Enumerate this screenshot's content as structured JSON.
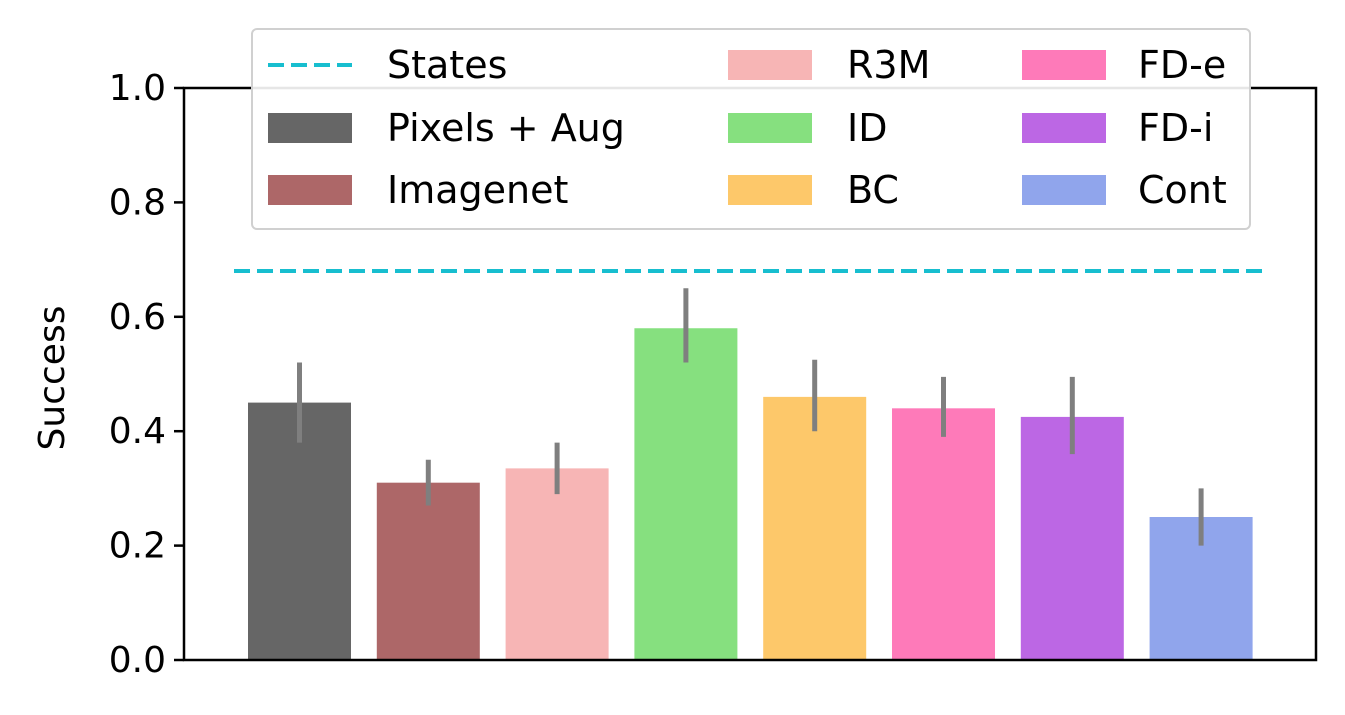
{
  "chart_data": {
    "type": "bar",
    "title": "",
    "xlabel": "",
    "ylabel": "Success",
    "ylim": [
      0.0,
      1.0
    ],
    "yticks": [
      "0.0",
      "0.2",
      "0.4",
      "0.6",
      "0.8",
      "1.0"
    ],
    "grid": false,
    "legend_position": "top",
    "reference_line": {
      "name": "States",
      "value": 0.68,
      "color": "#17becf",
      "style": "dashed"
    },
    "series": [
      {
        "name": "Pixels + Aug",
        "value": 0.45,
        "err_low": 0.38,
        "err_high": 0.52,
        "color": "#666666"
      },
      {
        "name": "Imagenet",
        "value": 0.31,
        "err_low": 0.27,
        "err_high": 0.35,
        "color": "#ad6768"
      },
      {
        "name": "R3M",
        "value": 0.335,
        "err_low": 0.29,
        "err_high": 0.38,
        "color": "#f7b5b5"
      },
      {
        "name": "ID",
        "value": 0.58,
        "err_low": 0.52,
        "err_high": 0.65,
        "color": "#86e07f"
      },
      {
        "name": "BC",
        "value": 0.46,
        "err_low": 0.4,
        "err_high": 0.525,
        "color": "#fdc86a"
      },
      {
        "name": "FD-e",
        "value": 0.44,
        "err_low": 0.39,
        "err_high": 0.495,
        "color": "#fe7ab9"
      },
      {
        "name": "FD-i",
        "value": 0.425,
        "err_low": 0.36,
        "err_high": 0.495,
        "color": "#bc67e4"
      },
      {
        "name": "Cont",
        "value": 0.25,
        "err_low": 0.2,
        "err_high": 0.3,
        "color": "#90a5ec"
      }
    ]
  }
}
